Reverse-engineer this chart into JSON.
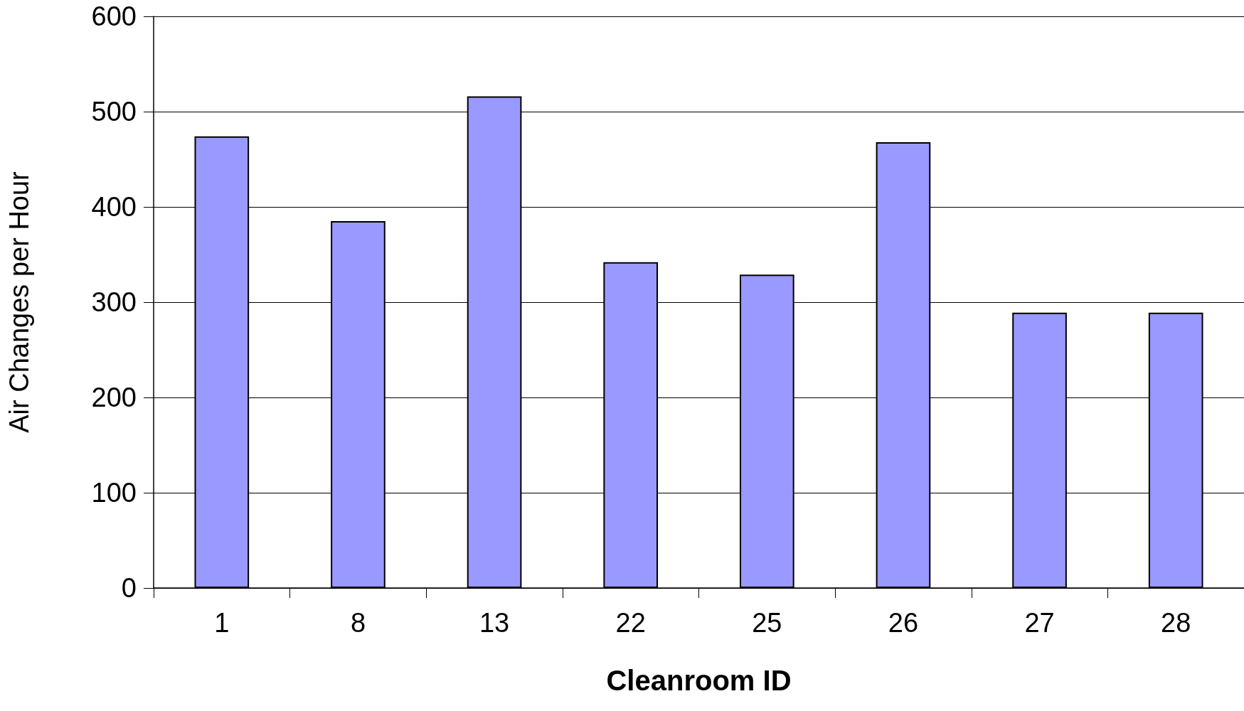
{
  "chart_data": {
    "type": "bar",
    "xlabel": "Cleanroom ID",
    "ylabel": "Air Changes per Hour",
    "categories": [
      "1",
      "8",
      "13",
      "22",
      "25",
      "26",
      "27",
      "28"
    ],
    "values": [
      474,
      385,
      516,
      342,
      329,
      468,
      289,
      289
    ],
    "color": "#9999ff",
    "ylim": [
      0,
      600
    ],
    "yticks": [
      0,
      100,
      200,
      300,
      400,
      500,
      600
    ],
    "grid": "y"
  }
}
